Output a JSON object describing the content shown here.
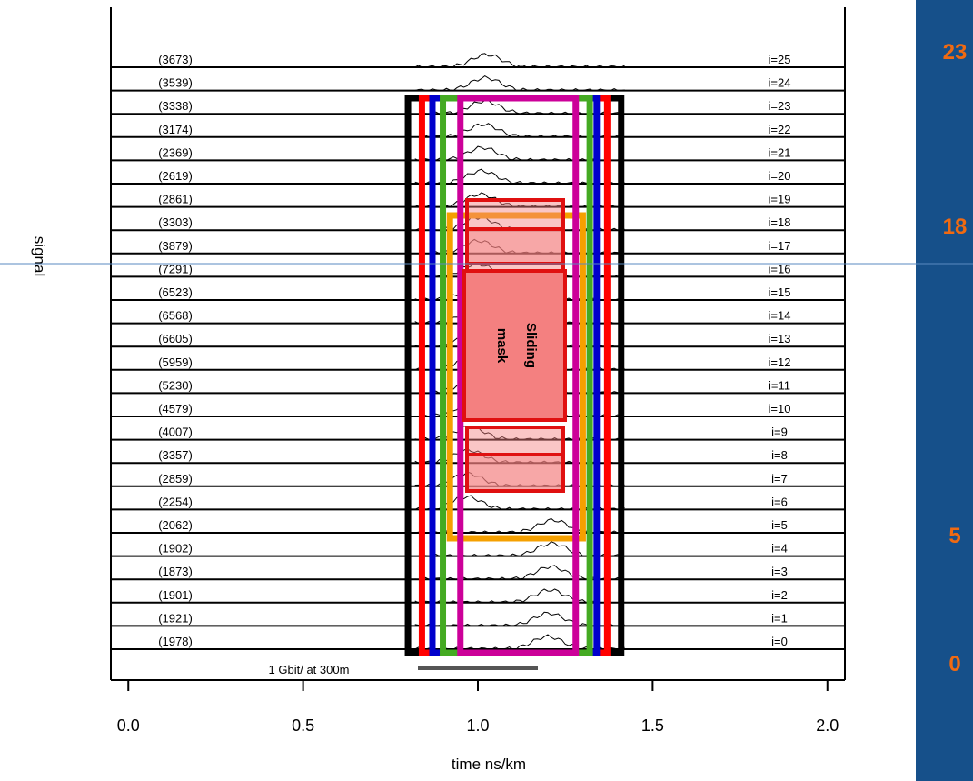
{
  "chart_data": {
    "type": "line",
    "xlabel": "time ns/km",
    "ylabel": "signal",
    "xlim": [
      -0.05,
      2.05
    ],
    "x_ticks": [
      "0.0",
      "0.5",
      "1.0",
      "1.5",
      "2.0"
    ],
    "scale_bar_label": "1 Gbit/ at 300m",
    "traces": [
      {
        "left": "(1978)",
        "right": "i=0"
      },
      {
        "left": "(1921)",
        "right": "i=1"
      },
      {
        "left": "(1901)",
        "right": "i=2"
      },
      {
        "left": "(1873)",
        "right": "i=3"
      },
      {
        "left": "(1902)",
        "right": "i=4"
      },
      {
        "left": "(2062)",
        "right": "i=5"
      },
      {
        "left": "(2254)",
        "right": "i=6"
      },
      {
        "left": "(2859)",
        "right": "i=7"
      },
      {
        "left": "(3357)",
        "right": "i=8"
      },
      {
        "left": "(4007)",
        "right": "i=9"
      },
      {
        "left": "(4579)",
        "right": "i=10"
      },
      {
        "left": "(5230)",
        "right": "i=11"
      },
      {
        "left": "(5959)",
        "right": "i=12"
      },
      {
        "left": "(6605)",
        "right": "i=13"
      },
      {
        "left": "(6568)",
        "right": "i=14"
      },
      {
        "left": "(6523)",
        "right": "i=15"
      },
      {
        "left": "(7291)",
        "right": "i=16"
      },
      {
        "left": "(3879)",
        "right": "i=17"
      },
      {
        "left": "(3303)",
        "right": "i=18"
      },
      {
        "left": "(2861)",
        "right": "i=19"
      },
      {
        "left": "(2619)",
        "right": "i=20"
      },
      {
        "left": "(2369)",
        "right": "i=21"
      },
      {
        "left": "(3174)",
        "right": "i=22"
      },
      {
        "left": "(3338)",
        "right": "i=23"
      },
      {
        "left": "(3539)",
        "right": "i=24"
      },
      {
        "left": "(3673)",
        "right": "i=25"
      }
    ],
    "window_x_ranges": [
      {
        "color": "#000000",
        "x": [
          0.8,
          1.41
        ]
      },
      {
        "color": "#ff0000",
        "x": [
          0.84,
          1.37
        ]
      },
      {
        "color": "#0000cc",
        "x": [
          0.87,
          1.34
        ]
      },
      {
        "color": "#44aa22",
        "x": [
          0.9,
          1.32
        ]
      },
      {
        "color": "#f5a000",
        "x": [
          0.92,
          1.3
        ]
      },
      {
        "color": "#cc0099",
        "x": [
          0.95,
          1.28
        ]
      }
    ],
    "mask_label": "Sliding mask"
  },
  "side_labels": [
    "23",
    "18",
    "5",
    "0"
  ],
  "colors": {
    "background": "#16508a",
    "accent": "#f06a12",
    "mask_fill": "#f48080",
    "mask_border": "#e01010"
  }
}
